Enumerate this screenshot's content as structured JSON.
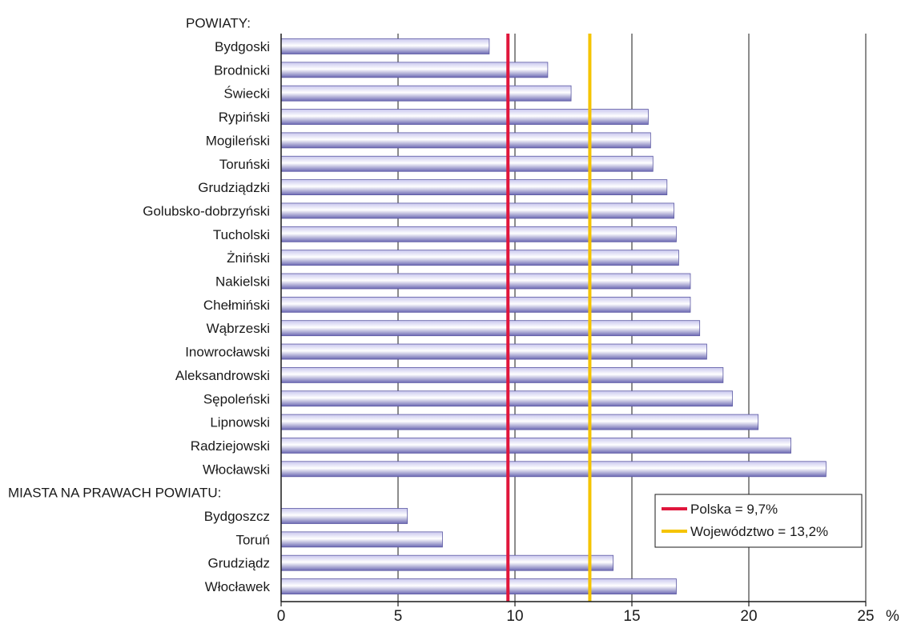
{
  "chart_data": {
    "type": "bar",
    "orientation": "horizontal",
    "groups": [
      {
        "label": "POWIATY:",
        "categories": [
          "Bydgoski",
          "Brodnicki",
          "Świecki",
          "Rypiński",
          "Mogileński",
          "Toruński",
          "Grudziądzki",
          "Golubsko-dobrzyński",
          "Tucholski",
          "Żniński",
          "Nakielski",
          "Chełmiński",
          "Wąbrzeski",
          "Inowrocławski",
          "Aleksandrowski",
          "Sępoleński",
          "Lipnowski",
          "Radziejowski",
          "Włocławski"
        ],
        "values": [
          8.9,
          11.4,
          12.4,
          15.7,
          15.8,
          15.9,
          16.5,
          16.8,
          16.9,
          17.0,
          17.5,
          17.5,
          17.9,
          18.2,
          18.9,
          19.3,
          20.4,
          21.8,
          23.3
        ]
      },
      {
        "label": "MIASTA NA PRAWACH POWIATU:",
        "categories": [
          "Bydgoszcz",
          "Toruń",
          "Grudziądz",
          "Włocławek"
        ],
        "values": [
          5.4,
          6.9,
          14.2,
          16.9
        ]
      }
    ],
    "xlim": [
      0,
      25
    ],
    "xticks": [
      0,
      5,
      10,
      15,
      20,
      25
    ],
    "x_unit": "%",
    "grid": "vertical",
    "bar_color": "#8a87c8",
    "reference_lines": [
      {
        "label": "Polska = 9,7%",
        "value": 9.7,
        "color": "#e0163c"
      },
      {
        "label": "Województwo = 13,2%",
        "value": 13.2,
        "color": "#f5c400"
      }
    ],
    "legend_position": "bottom-right"
  }
}
